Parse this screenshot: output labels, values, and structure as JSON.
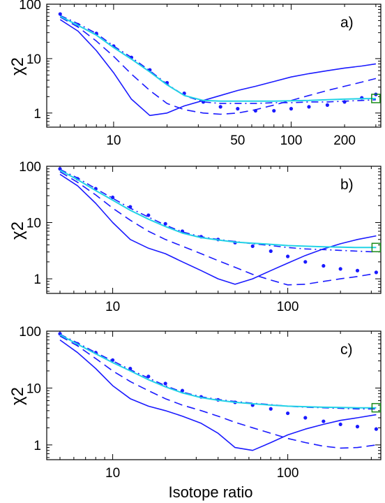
{
  "figure": {
    "xlabel": "Isotope ratio",
    "colors": {
      "model": "#1a1aff",
      "cyan": "#22d3e6",
      "marker": "#1a8a1a",
      "axis": "#000000"
    }
  },
  "chart_data": [
    {
      "type": "line",
      "panel_label": "a)",
      "ylabel": "χ2",
      "xscale": "log",
      "yscale": "log",
      "xlim": [
        4.2,
        320
      ],
      "ylim": [
        0.55,
        100
      ],
      "xticks": [
        10,
        50,
        100,
        200
      ],
      "xtick_labels": [
        "10",
        "50",
        "100",
        "200"
      ],
      "yticks": [
        1,
        10,
        100
      ],
      "ytick_labels": [
        "1",
        "10",
        "100"
      ],
      "series": [
        {
          "style": "solid",
          "x": [
            5,
            6.3,
            8,
            10,
            12.6,
            16,
            20,
            25,
            32,
            40,
            50,
            63,
            80,
            100,
            126,
            160,
            200,
            250,
            300
          ],
          "y": [
            52,
            32,
            14,
            5.5,
            1.8,
            0.9,
            1.0,
            1.35,
            1.7,
            2.1,
            2.6,
            3.1,
            3.8,
            4.6,
            5.3,
            6.0,
            6.7,
            7.3,
            8.0
          ]
        },
        {
          "style": "dashed",
          "x": [
            5,
            6.3,
            8,
            10,
            12.6,
            16,
            20,
            25,
            32,
            40,
            50,
            63,
            80,
            100,
            126,
            160,
            200,
            250,
            300
          ],
          "y": [
            58,
            38,
            21,
            11,
            5.2,
            2.6,
            1.5,
            1.15,
            1.0,
            0.95,
            1.0,
            1.15,
            1.4,
            1.7,
            2.1,
            2.6,
            3.1,
            3.7,
            4.3
          ]
        },
        {
          "style": "dotted",
          "x": [
            5,
            6.3,
            8,
            10,
            12.6,
            16,
            20,
            25,
            32,
            40,
            50,
            63,
            80,
            100,
            126,
            160,
            200,
            250,
            300
          ],
          "y": [
            66,
            42,
            29,
            17,
            10.5,
            6.2,
            3.6,
            2.3,
            1.6,
            1.3,
            1.2,
            1.1,
            1.1,
            1.2,
            1.3,
            1.4,
            1.6,
            1.9,
            2.2
          ]
        },
        {
          "style": "dashdot",
          "x": [
            5,
            6.3,
            8,
            10,
            12.6,
            16,
            20,
            25,
            32,
            40,
            50,
            63,
            80,
            100,
            126,
            160,
            200,
            250,
            300
          ],
          "y": [
            62,
            44,
            29,
            17,
            10.5,
            6,
            3.4,
            2.1,
            1.6,
            1.5,
            1.5,
            1.5,
            1.55,
            1.55,
            1.6,
            1.6,
            1.65,
            1.7,
            1.75
          ]
        },
        {
          "style": "cyan",
          "x": [
            5,
            6.3,
            8,
            10,
            12.6,
            16,
            20,
            25,
            32,
            40,
            50,
            63,
            80,
            100,
            126,
            160,
            200,
            250,
            300
          ],
          "y": [
            60,
            41,
            27,
            16,
            9.8,
            5.7,
            3.3,
            2.1,
            1.7,
            1.65,
            1.65,
            1.65,
            1.65,
            1.68,
            1.7,
            1.75,
            1.8,
            1.83,
            1.85
          ]
        }
      ],
      "marker": {
        "x": 300,
        "y": 1.85
      }
    },
    {
      "type": "line",
      "panel_label": "b)",
      "ylabel": "χ2",
      "xscale": "log",
      "yscale": "log",
      "xlim": [
        4.2,
        340
      ],
      "ylim": [
        0.55,
        100
      ],
      "xticks": [
        10,
        100
      ],
      "xtick_labels": [
        "10",
        "100"
      ],
      "yticks": [
        1,
        10,
        100
      ],
      "ytick_labels": [
        "1",
        "10",
        "100"
      ],
      "series": [
        {
          "style": "solid",
          "x": [
            5,
            6.3,
            8,
            10,
            12.6,
            16,
            20,
            25,
            32,
            40,
            50,
            63,
            80,
            100,
            126,
            160,
            200,
            250,
            320
          ],
          "y": [
            72,
            45,
            22,
            10,
            5,
            3.5,
            2.8,
            2.0,
            1.4,
            1.0,
            0.8,
            1.0,
            1.4,
            1.9,
            2.6,
            3.4,
            4.2,
            5.0,
            5.8
          ]
        },
        {
          "style": "dashed",
          "x": [
            5,
            6.3,
            8,
            10,
            12.6,
            16,
            20,
            25,
            32,
            40,
            50,
            63,
            80,
            100,
            126,
            160,
            200,
            250,
            320
          ],
          "y": [
            80,
            52,
            31,
            18,
            11,
            7,
            5,
            3.8,
            2.8,
            2.1,
            1.6,
            1.2,
            0.95,
            0.78,
            0.8,
            0.9,
            1.0,
            1.1,
            1.25
          ]
        },
        {
          "style": "dotted",
          "x": [
            5,
            6.3,
            8,
            10,
            12.6,
            16,
            20,
            25,
            32,
            40,
            50,
            63,
            80,
            100,
            126,
            160,
            200,
            250,
            320
          ],
          "y": [
            90,
            60,
            40,
            28,
            19,
            13.5,
            9.5,
            7,
            5.6,
            5,
            4.4,
            3.8,
            3.1,
            2.5,
            2.0,
            1.7,
            1.5,
            1.4,
            1.3
          ]
        },
        {
          "style": "dashdot",
          "x": [
            5,
            6.3,
            8,
            10,
            12.6,
            16,
            20,
            25,
            32,
            40,
            50,
            63,
            80,
            100,
            126,
            160,
            200,
            250,
            320
          ],
          "y": [
            88,
            62,
            40,
            27,
            18,
            12.5,
            9,
            6.8,
            5.6,
            5,
            4.6,
            4.2,
            3.9,
            3.6,
            3.4,
            3.3,
            3.2,
            3.1,
            3.0
          ]
        },
        {
          "style": "cyan",
          "x": [
            5,
            6.3,
            8,
            10,
            12.6,
            16,
            20,
            25,
            32,
            40,
            50,
            63,
            80,
            100,
            126,
            160,
            200,
            250,
            320
          ],
          "y": [
            85,
            58,
            37,
            25,
            16.5,
            11.5,
            8.5,
            6.5,
            5.4,
            4.9,
            4.5,
            4.3,
            4.1,
            3.9,
            3.8,
            3.7,
            3.65,
            3.6,
            3.6
          ]
        }
      ],
      "marker": {
        "x": 320,
        "y": 3.6
      }
    },
    {
      "type": "line",
      "panel_label": "c)",
      "ylabel": "χ2",
      "xscale": "log",
      "yscale": "log",
      "xlim": [
        4.2,
        340
      ],
      "ylim": [
        0.55,
        100
      ],
      "xticks": [
        10,
        100
      ],
      "xtick_labels": [
        "10",
        "100"
      ],
      "yticks": [
        1,
        10,
        100
      ],
      "ytick_labels": [
        "1",
        "10",
        "100"
      ],
      "series": [
        {
          "style": "solid",
          "x": [
            5,
            6.3,
            8,
            10,
            12.6,
            16,
            20,
            25,
            32,
            40,
            50,
            63,
            80,
            100,
            126,
            160,
            200,
            250,
            320
          ],
          "y": [
            70,
            42,
            22,
            11,
            6.5,
            4.8,
            4.0,
            3.2,
            2.4,
            1.6,
            0.9,
            0.8,
            1.1,
            1.5,
            1.9,
            2.3,
            2.7,
            3.0,
            3.4
          ]
        },
        {
          "style": "dashed",
          "x": [
            5,
            6.3,
            8,
            10,
            12.6,
            16,
            20,
            25,
            32,
            40,
            50,
            63,
            80,
            100,
            126,
            160,
            200,
            250,
            320
          ],
          "y": [
            82,
            55,
            33,
            20,
            13,
            9,
            6.5,
            5,
            4,
            3.2,
            2.5,
            2.0,
            1.6,
            1.3,
            1.1,
            0.95,
            0.88,
            0.9,
            1.0
          ]
        },
        {
          "style": "dotted",
          "x": [
            5,
            6.3,
            8,
            10,
            12.6,
            16,
            20,
            25,
            32,
            40,
            50,
            63,
            80,
            100,
            126,
            160,
            200,
            250,
            320
          ],
          "y": [
            90,
            60,
            42,
            31,
            22,
            16,
            12,
            9,
            7,
            6.2,
            5.6,
            5,
            4.3,
            3.6,
            3.0,
            2.6,
            2.3,
            2.1,
            1.9
          ]
        },
        {
          "style": "dashdot",
          "x": [
            5,
            6.3,
            8,
            10,
            12.6,
            16,
            20,
            25,
            32,
            40,
            50,
            63,
            80,
            100,
            126,
            160,
            200,
            250,
            320
          ],
          "y": [
            88,
            62,
            42,
            30,
            21,
            15,
            11,
            8.5,
            7,
            6.3,
            5.8,
            5.4,
            5.1,
            4.8,
            4.6,
            4.5,
            4.4,
            4.3,
            4.3
          ]
        },
        {
          "style": "cyan",
          "x": [
            5,
            6.3,
            8,
            10,
            12.6,
            16,
            20,
            25,
            32,
            40,
            50,
            63,
            80,
            100,
            126,
            160,
            200,
            250,
            320
          ],
          "y": [
            86,
            59,
            40,
            28,
            20,
            14,
            10.5,
            8.2,
            6.8,
            6.1,
            5.6,
            5.3,
            5.0,
            4.8,
            4.7,
            4.6,
            4.55,
            4.5,
            4.5
          ]
        }
      ],
      "marker": {
        "x": 320,
        "y": 4.5
      }
    }
  ]
}
